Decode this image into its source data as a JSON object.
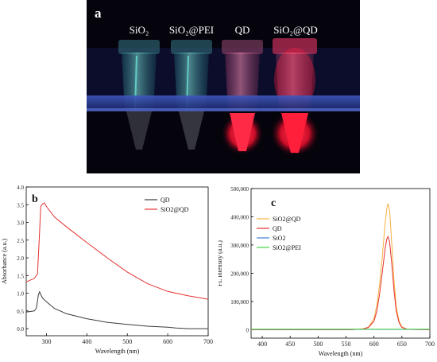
{
  "panel_a": {
    "letter": "a",
    "tube_labels": [
      "SiO₂",
      "SiO₂@PEI",
      "QD",
      "SiO₂@QD"
    ]
  },
  "chart_data": [
    {
      "letter": "b",
      "type": "line",
      "xlabel": "Wavelength (nm)",
      "ylabel": "Absorbance (a.u.)",
      "xlim": [
        250,
        700
      ],
      "ylim": [
        -0.2,
        4.0
      ],
      "xticks": [
        300,
        400,
        500,
        600,
        700
      ],
      "yticks": [
        0.0,
        0.5,
        1.0,
        1.5,
        2.0,
        2.5,
        3.0,
        3.5,
        4.0
      ],
      "ytick_labels": [
        "0.0",
        "0.5",
        "1.0",
        "1.5",
        "2.0",
        "2.5",
        "3.0",
        "3.5",
        "4.0"
      ],
      "legend_position": "top-right",
      "series": [
        {
          "name": "QD",
          "color": "#3a3a3a",
          "x": [
            250,
            270,
            275,
            280,
            283,
            290,
            300,
            320,
            350,
            400,
            450,
            500,
            550,
            600,
            620,
            650,
            700
          ],
          "y": [
            0.47,
            0.5,
            0.57,
            0.95,
            1.04,
            0.87,
            0.76,
            0.57,
            0.42,
            0.28,
            0.18,
            0.12,
            0.07,
            0.04,
            0.02,
            0.0,
            0.0
          ]
        },
        {
          "name": "SiO2@QD",
          "color": "#e53030",
          "x": [
            250,
            270,
            278,
            282,
            286,
            290,
            295,
            300,
            320,
            350,
            400,
            450,
            500,
            550,
            600,
            650,
            700
          ],
          "y": [
            1.32,
            1.42,
            1.55,
            2.5,
            3.45,
            3.52,
            3.55,
            3.45,
            3.15,
            2.87,
            2.43,
            2.0,
            1.6,
            1.27,
            1.05,
            0.93,
            0.83
          ]
        }
      ]
    },
    {
      "letter": "c",
      "type": "line",
      "xlabel": "Wavelength (nm)",
      "ylabel": "FL Intensity (a.u.)",
      "xlim": [
        380,
        700
      ],
      "ylim": [
        -30000,
        500000
      ],
      "xticks": [
        400,
        450,
        500,
        550,
        600,
        650,
        700
      ],
      "yticks": [
        0,
        100000,
        200000,
        300000,
        400000,
        500000
      ],
      "ytick_labels": [
        "0",
        "100,000",
        "200,000",
        "300,000",
        "400,000",
        "500,000"
      ],
      "legend_position": "top-left",
      "series": [
        {
          "name": "SiO2@QD",
          "color": "#f5b041",
          "x": [
            380,
            560,
            580,
            590,
            600,
            605,
            610,
            615,
            620,
            623,
            625,
            628,
            632,
            636,
            640,
            645,
            650,
            660,
            700
          ],
          "y": [
            0,
            0,
            3000,
            9000,
            40000,
            85000,
            160000,
            260000,
            380000,
            430000,
            447000,
            420000,
            300000,
            170000,
            80000,
            30000,
            10000,
            1000,
            0
          ]
        },
        {
          "name": "QD",
          "color": "#e53030",
          "x": [
            380,
            560,
            580,
            590,
            600,
            605,
            610,
            615,
            620,
            623,
            625,
            628,
            632,
            636,
            640,
            645,
            650,
            660,
            700
          ],
          "y": [
            0,
            0,
            2000,
            8000,
            30000,
            65000,
            125000,
            205000,
            290000,
            322000,
            330000,
            310000,
            230000,
            135000,
            65000,
            25000,
            8000,
            1000,
            0
          ]
        },
        {
          "name": "SiO2",
          "color": "#3b7dd8",
          "x": [
            380,
            700
          ],
          "y": [
            1000,
            1000
          ]
        },
        {
          "name": "SiO2@PEI",
          "color": "#44d640",
          "x": [
            380,
            700
          ],
          "y": [
            1500,
            1500
          ]
        }
      ]
    }
  ]
}
